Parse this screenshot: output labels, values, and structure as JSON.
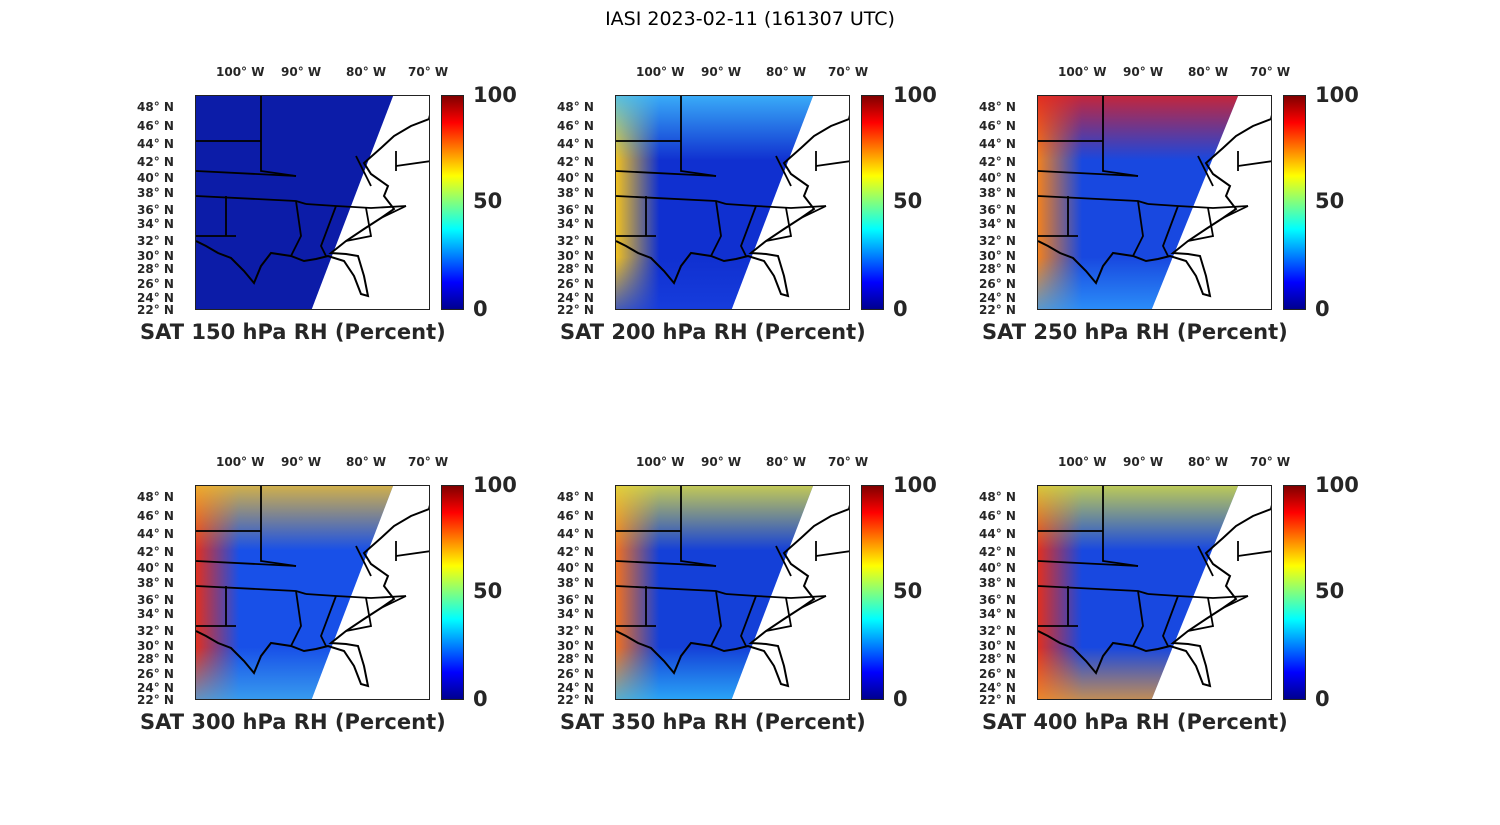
{
  "figure_title": "IASI 2023-02-11 (161307 UTC)",
  "lon_labels": [
    "100° W",
    "90° W",
    "80° W",
    "70° W"
  ],
  "lat_labels": [
    "48° N",
    "46° N",
    "44° N",
    "42° N",
    "40° N",
    "38° N",
    "36° N",
    "34° N",
    "32° N",
    "30° N",
    "28° N",
    "26° N",
    "24° N",
    "22° N"
  ],
  "colorbar": {
    "ticks": [
      "100",
      "50",
      "0"
    ],
    "range": [
      0,
      100
    ],
    "colormap": "jet"
  },
  "panels": [
    {
      "title": "SAT 150 hPa RH (Percent)",
      "base": "#0c1ca8",
      "west": "#0c1ca8",
      "north": "#0c1ca8",
      "south": "#0c1ca8",
      "swath": "west"
    },
    {
      "title": "SAT 200 hPa RH (Percent)",
      "base": "#1030d0",
      "west": "#f0c020",
      "north": "#40c0ff",
      "south": "#1840e0",
      "swath": "west"
    },
    {
      "title": "SAT 250 hPa RH (Percent)",
      "base": "#1848e0",
      "west": "#f08020",
      "north": "#e02020",
      "south": "#30a0ff",
      "swath": "mid"
    },
    {
      "title": "SAT 300 hPa RH (Percent)",
      "base": "#1850e8",
      "west": "#e03020",
      "north": "#f0c030",
      "south": "#40b0f0",
      "swath": "west"
    },
    {
      "title": "SAT 350 hPa RH (Percent)",
      "base": "#1440d8",
      "west": "#f07020",
      "north": "#e0e040",
      "south": "#30c0ff",
      "swath": "west"
    },
    {
      "title": "SAT 400 hPa RH (Percent)",
      "base": "#1848e0",
      "west": "#e03020",
      "north": "#d8e040",
      "south": "#f0a030",
      "swath": "mid"
    }
  ]
}
